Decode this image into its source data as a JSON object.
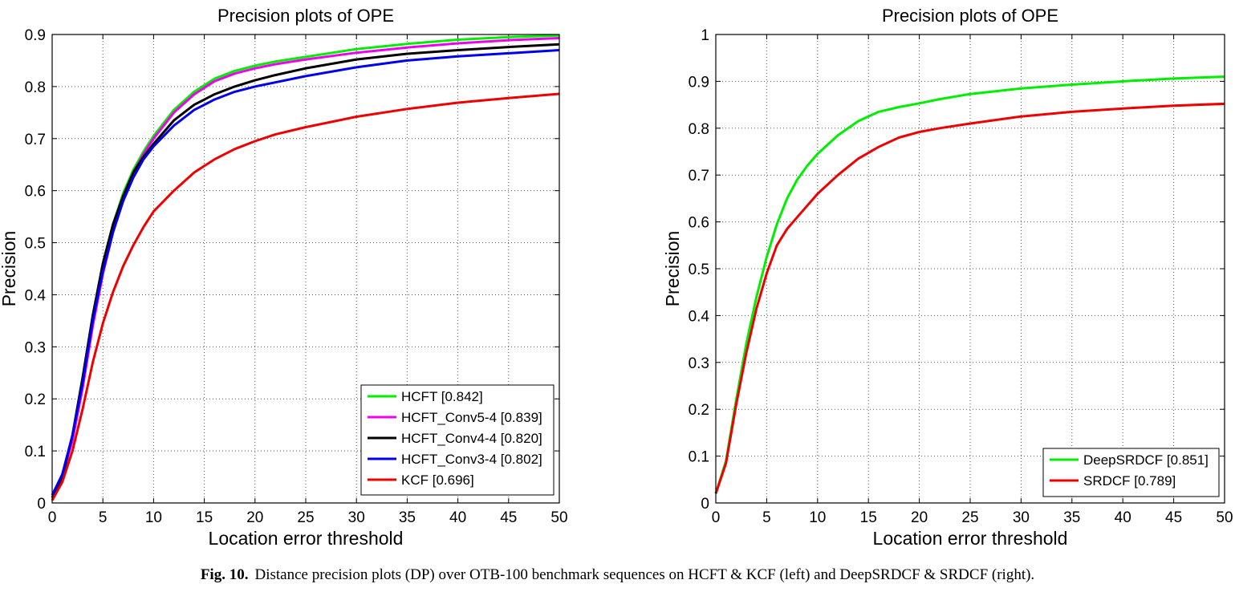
{
  "chart_data": [
    {
      "type": "line",
      "title": "Precision plots of OPE",
      "xlabel": "Location error threshold",
      "ylabel": "Precision",
      "xlim": [
        0,
        50
      ],
      "ylim": [
        0,
        0.9
      ],
      "xticks": [
        "0",
        "5",
        "10",
        "15",
        "20",
        "25",
        "30",
        "35",
        "40",
        "45",
        "50"
      ],
      "yticks": [
        "0",
        "0.1",
        "0.2",
        "0.3",
        "0.4",
        "0.5",
        "0.6",
        "0.7",
        "0.8",
        "0.9"
      ],
      "grid": true,
      "legend_position": "bottom-right",
      "x": [
        0,
        1,
        2,
        3,
        4,
        5,
        6,
        7,
        8,
        9,
        10,
        12,
        14,
        16,
        18,
        20,
        22,
        25,
        30,
        35,
        40,
        45,
        50
      ],
      "series": [
        {
          "name": "HCFT [0.842]",
          "color": "#00ee00",
          "values": [
            0.01,
            0.05,
            0.13,
            0.24,
            0.36,
            0.46,
            0.535,
            0.595,
            0.64,
            0.675,
            0.705,
            0.755,
            0.79,
            0.815,
            0.83,
            0.84,
            0.848,
            0.857,
            0.872,
            0.882,
            0.89,
            0.895,
            0.898
          ]
        },
        {
          "name": "HCFT_Conv5-4 [0.839]",
          "color": "#ee00ee",
          "values": [
            0.01,
            0.05,
            0.12,
            0.22,
            0.34,
            0.44,
            0.52,
            0.585,
            0.635,
            0.67,
            0.7,
            0.75,
            0.785,
            0.81,
            0.825,
            0.835,
            0.843,
            0.852,
            0.865,
            0.875,
            0.883,
            0.889,
            0.893
          ]
        },
        {
          "name": "HCFT_Conv4-4 [0.820]",
          "color": "#000000",
          "values": [
            0.01,
            0.05,
            0.13,
            0.24,
            0.36,
            0.46,
            0.535,
            0.59,
            0.635,
            0.665,
            0.69,
            0.735,
            0.765,
            0.785,
            0.8,
            0.812,
            0.822,
            0.835,
            0.852,
            0.863,
            0.87,
            0.876,
            0.881
          ]
        },
        {
          "name": "HCFT_Conv3-4 [0.802]",
          "color": "#0000ee",
          "values": [
            0.015,
            0.055,
            0.13,
            0.23,
            0.35,
            0.445,
            0.52,
            0.58,
            0.625,
            0.66,
            0.685,
            0.725,
            0.755,
            0.775,
            0.79,
            0.8,
            0.808,
            0.82,
            0.837,
            0.85,
            0.858,
            0.864,
            0.87
          ]
        },
        {
          "name": "KCF [0.696]",
          "color": "#ee0000",
          "values": [
            0.005,
            0.04,
            0.1,
            0.18,
            0.27,
            0.345,
            0.405,
            0.455,
            0.495,
            0.53,
            0.56,
            0.6,
            0.635,
            0.66,
            0.68,
            0.695,
            0.708,
            0.722,
            0.742,
            0.757,
            0.769,
            0.778,
            0.786
          ]
        }
      ]
    },
    {
      "type": "line",
      "title": "Precision plots of OPE",
      "xlabel": "Location error threshold",
      "ylabel": "Precision",
      "xlim": [
        0,
        50
      ],
      "ylim": [
        0,
        1
      ],
      "xticks": [
        "0",
        "5",
        "10",
        "15",
        "20",
        "25",
        "30",
        "35",
        "40",
        "45",
        "50"
      ],
      "yticks": [
        "0",
        "0.1",
        "0.2",
        "0.3",
        "0.4",
        "0.5",
        "0.6",
        "0.7",
        "0.8",
        "0.9",
        "1"
      ],
      "grid": true,
      "legend_position": "bottom-right",
      "x": [
        0,
        1,
        2,
        3,
        4,
        5,
        6,
        7,
        8,
        9,
        10,
        12,
        14,
        16,
        18,
        20,
        22,
        25,
        30,
        35,
        40,
        45,
        50
      ],
      "series": [
        {
          "name": "DeepSRDCF [0.851]",
          "color": "#00ee00",
          "values": [
            0.02,
            0.09,
            0.22,
            0.34,
            0.44,
            0.525,
            0.595,
            0.65,
            0.69,
            0.72,
            0.745,
            0.785,
            0.815,
            0.835,
            0.845,
            0.853,
            0.862,
            0.873,
            0.885,
            0.893,
            0.9,
            0.906,
            0.91
          ]
        },
        {
          "name": "SRDCF [0.789]",
          "color": "#ee0000",
          "values": [
            0.02,
            0.085,
            0.21,
            0.32,
            0.415,
            0.49,
            0.55,
            0.585,
            0.61,
            0.635,
            0.66,
            0.7,
            0.735,
            0.76,
            0.78,
            0.792,
            0.8,
            0.81,
            0.825,
            0.835,
            0.842,
            0.848,
            0.852
          ]
        }
      ]
    }
  ],
  "caption": {
    "label": "Fig. 10.",
    "text": "Distance precision plots (DP) over OTB-100 benchmark sequences on HCFT & KCF (left) and DeepSRDCF & SRDCF (right)."
  }
}
